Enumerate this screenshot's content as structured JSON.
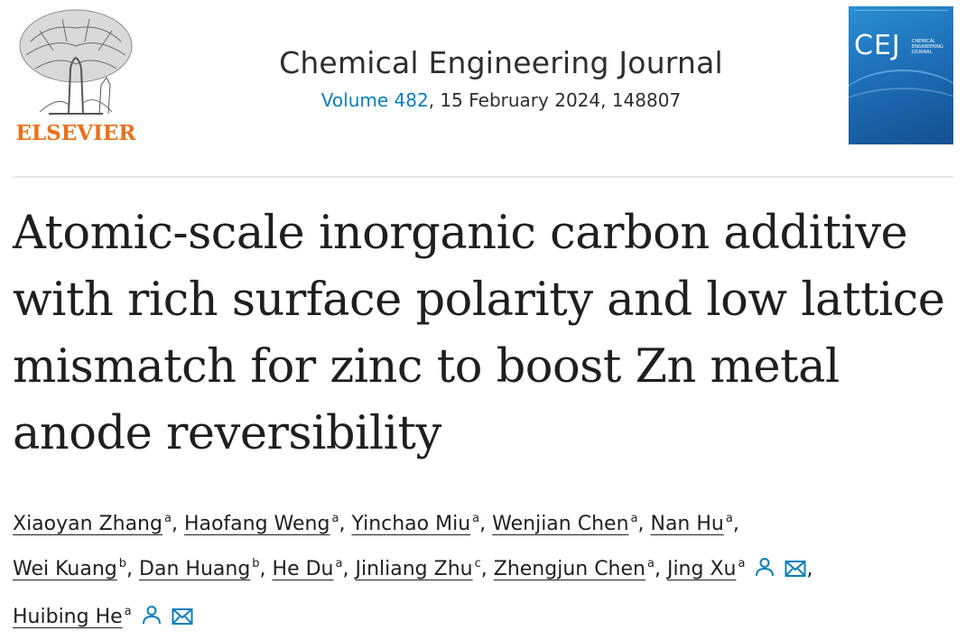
{
  "header": {
    "publisher": "ELSEVIER",
    "journal_title": "Chemical Engineering Journal",
    "volume": "Volume 482",
    "issue_info": ", 15 February 2024, 148807",
    "cover": {
      "logo": "CEJ",
      "subtitle": "CHEMICAL ENGINEERING JOURNAL",
      "color": "#1e6fb8"
    }
  },
  "article": {
    "title_lines": [
      "Atomic-scale inorganic carbon additive",
      "with rich surface polarity and low lattice",
      "mismatch for zinc to boost Zn metal",
      "anode reversibility"
    ]
  },
  "authors": [
    {
      "name": "Xiaoyan Zhang",
      "aff": "a",
      "sep": ","
    },
    {
      "name": "Haofang Weng",
      "aff": "a",
      "sep": ","
    },
    {
      "name": "Yinchao Miu",
      "aff": "a",
      "sep": ","
    },
    {
      "name": "Wenjian Chen",
      "aff": "a",
      "sep": ","
    },
    {
      "name": "Nan Hu",
      "aff": "a",
      "sep": ","
    },
    {
      "name": "Wei Kuang",
      "aff": "b",
      "sep": ","
    },
    {
      "name": "Dan Huang",
      "aff": "b",
      "sep": ","
    },
    {
      "name": "He Du",
      "aff": "a",
      "sep": ","
    },
    {
      "name": "Jinliang Zhu",
      "aff": "c",
      "sep": ","
    },
    {
      "name": "Zhengjun Chen",
      "aff": "a",
      "sep": ","
    },
    {
      "name": "Jing Xu",
      "aff": "a",
      "sep": ",",
      "icons": [
        "person-icon",
        "email-icon"
      ]
    },
    {
      "name": "Huibing He",
      "aff": "a",
      "sep": "",
      "icons": [
        "person-icon",
        "email-icon"
      ]
    }
  ],
  "colors": {
    "accent": "#0c7dbb",
    "publisher": "#e9711c",
    "text": "#1f1f1f"
  }
}
